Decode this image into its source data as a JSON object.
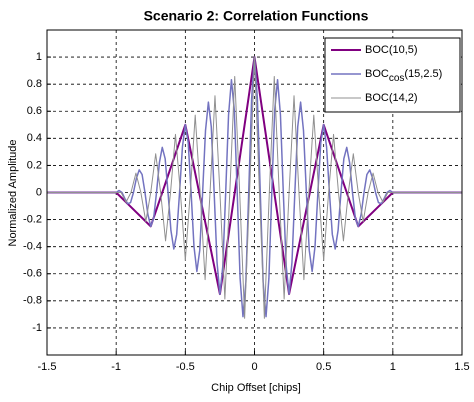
{
  "chart_data": {
    "type": "line",
    "title": "Scenario 2: Correlation Functions",
    "x_label": "Chip Offset [chips]",
    "y_label": "Normalized Amplitude",
    "xlim": [
      -1.5,
      1.5
    ],
    "xticks": [
      -1.5,
      -1,
      -0.5,
      0,
      0.5,
      1,
      1.5
    ],
    "ylim": [
      -1.2,
      1.2
    ],
    "yticks": [
      -1,
      -0.8,
      -0.6,
      -0.4,
      -0.2,
      0,
      0.2,
      0.4,
      0.6,
      0.8,
      1
    ],
    "grid": true,
    "legend": "upper right",
    "series": [
      {
        "name": {
          "text": "BOC(10,5)"
        },
        "color": "#800080",
        "width": 2,
        "x": [
          -1.5,
          -1,
          -0.75,
          -0.5,
          -0.25,
          0,
          0.25,
          0.5,
          0.75,
          1,
          1.5
        ],
        "values": [
          0,
          0,
          -0.25,
          0.5,
          -0.75,
          1,
          -0.75,
          0.5,
          -0.25,
          0,
          0
        ]
      },
      {
        "name": {
          "text": "BOC",
          "subscript": "cos",
          "suffix": "(15,2.5)"
        },
        "color": "#7373c0",
        "width": 1.5,
        "x": [
          -1.5,
          -1,
          -0.9792,
          -0.9583,
          -0.9375,
          -0.9167,
          -0.8958,
          -0.875,
          -0.8542,
          -0.8333,
          -0.8125,
          -0.7917,
          -0.7708,
          -0.75,
          -0.7292,
          -0.7083,
          -0.6875,
          -0.6667,
          -0.6458,
          -0.625,
          -0.6042,
          -0.5833,
          -0.5625,
          -0.5417,
          -0.5208,
          -0.5,
          -0.4792,
          -0.4583,
          -0.4375,
          -0.4167,
          -0.3958,
          -0.375,
          -0.3542,
          -0.3333,
          -0.3125,
          -0.2917,
          -0.2708,
          -0.25,
          -0.2292,
          -0.2083,
          -0.1875,
          -0.1667,
          -0.1458,
          -0.125,
          -0.1042,
          -0.0833,
          -0.0625,
          -0.0417,
          -0.0208,
          0,
          0.0208,
          0.0417,
          0.0625,
          0.0833,
          0.1042,
          0.125,
          0.1458,
          0.1667,
          0.1875,
          0.2083,
          0.2292,
          0.25,
          0.2708,
          0.2917,
          0.3125,
          0.3333,
          0.3542,
          0.375,
          0.3958,
          0.4167,
          0.4375,
          0.4583,
          0.4792,
          0.5,
          0.5208,
          0.5417,
          0.5625,
          0.5833,
          0.6042,
          0.625,
          0.6458,
          0.6667,
          0.6875,
          0.7083,
          0.7292,
          0.75,
          0.7708,
          0.7917,
          0.8125,
          0.8333,
          0.8542,
          0.875,
          0.8958,
          0.9167,
          0.9375,
          0.9583,
          0.9792,
          1,
          1.5
        ],
        "values": [
          0,
          0,
          0.015,
          0,
          -0.044,
          -0.083,
          -0.074,
          0,
          0.103,
          0.167,
          0.133,
          0,
          -0.162,
          -0.25,
          -0.191,
          0,
          0.221,
          0.333,
          0.25,
          0,
          -0.28,
          -0.417,
          -0.309,
          0,
          0.339,
          0.5,
          0.368,
          0,
          -0.398,
          -0.583,
          -0.427,
          0,
          0.457,
          0.667,
          0.486,
          0,
          -0.516,
          -0.75,
          -0.545,
          0,
          0.574,
          0.833,
          0.604,
          0,
          -0.633,
          -0.917,
          -0.663,
          0,
          0.692,
          1,
          0.692,
          0,
          -0.663,
          -0.917,
          -0.633,
          0,
          0.604,
          0.833,
          0.574,
          0,
          -0.545,
          -0.75,
          -0.516,
          0,
          0.486,
          0.667,
          0.457,
          0,
          -0.427,
          -0.583,
          -0.398,
          0,
          0.368,
          0.5,
          0.339,
          0,
          -0.309,
          -0.417,
          -0.28,
          0,
          0.25,
          0.333,
          0.221,
          0,
          -0.191,
          -0.25,
          -0.162,
          0,
          0.133,
          0.167,
          0.103,
          0,
          -0.074,
          -0.083,
          -0.044,
          0,
          0.015,
          0,
          0
        ]
      },
      {
        "name": {
          "text": "BOC(14,2)"
        },
        "color": "#909090",
        "width": 1,
        "x": [
          -1.5,
          -1,
          -0.9643,
          -0.9286,
          -0.8929,
          -0.8571,
          -0.8214,
          -0.7857,
          -0.75,
          -0.7143,
          -0.6786,
          -0.6429,
          -0.6071,
          -0.5714,
          -0.5357,
          -0.5,
          -0.4643,
          -0.4286,
          -0.3929,
          -0.3571,
          -0.3214,
          -0.2857,
          -0.25,
          -0.2143,
          -0.1786,
          -0.1429,
          -0.1071,
          -0.0714,
          -0.0357,
          0,
          0.0357,
          0.0714,
          0.1071,
          0.1429,
          0.1786,
          0.2143,
          0.25,
          0.2857,
          0.3214,
          0.3571,
          0.3929,
          0.4286,
          0.4643,
          0.5,
          0.5357,
          0.5714,
          0.6071,
          0.6429,
          0.6786,
          0.7143,
          0.75,
          0.7857,
          0.8214,
          0.8571,
          0.8929,
          0.9286,
          0.9643,
          1,
          1.5
        ],
        "values": [
          0,
          0,
          0,
          -0.071,
          0,
          0.143,
          0,
          -0.214,
          0,
          0.286,
          0,
          -0.357,
          0,
          0.429,
          0,
          -0.5,
          0,
          0.571,
          0,
          -0.643,
          0,
          0.714,
          0,
          -0.786,
          0,
          0.857,
          0,
          -0.929,
          0,
          1,
          0,
          -0.929,
          0,
          0.857,
          0,
          -0.786,
          0,
          0.714,
          0,
          -0.643,
          0,
          0.571,
          0,
          -0.5,
          0,
          0.429,
          0,
          -0.357,
          0,
          0.286,
          0,
          -0.214,
          0,
          0.143,
          0,
          -0.071,
          0,
          0,
          0
        ]
      }
    ]
  }
}
